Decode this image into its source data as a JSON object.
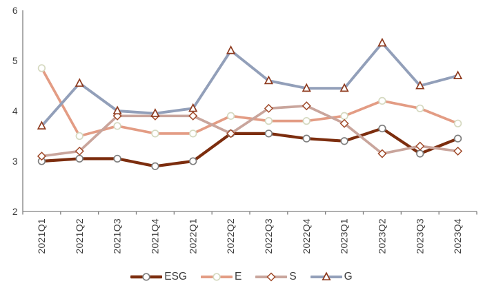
{
  "chart_data": {
    "type": "line",
    "categories": [
      "2021Q1",
      "2021Q2",
      "2021Q3",
      "2021Q4",
      "2022Q1",
      "2022Q2",
      "2022Q3",
      "2022Q4",
      "2023Q1",
      "2023Q2",
      "2023Q3",
      "2023Q4"
    ],
    "series": [
      {
        "name": "ESG",
        "marker": "circle",
        "color": "#7C2D0E",
        "marker_stroke": "#7f7f7f",
        "line_width": 4.2,
        "values": [
          3.0,
          3.05,
          3.05,
          2.9,
          3.0,
          3.55,
          3.55,
          3.45,
          3.4,
          3.65,
          3.15,
          3.45
        ]
      },
      {
        "name": "E",
        "marker": "circle",
        "color": "#E39C84",
        "marker_stroke": "#d5d9c0",
        "line_width": 3.7,
        "values": [
          4.85,
          3.5,
          3.7,
          3.55,
          3.55,
          3.9,
          3.8,
          3.8,
          3.9,
          4.2,
          4.05,
          3.75
        ]
      },
      {
        "name": "S",
        "marker": "diamond",
        "color": "#C9A59C",
        "marker_stroke": "#A04A2A",
        "line_width": 3.7,
        "values": [
          3.1,
          3.2,
          3.9,
          3.9,
          3.9,
          3.55,
          4.05,
          4.1,
          3.75,
          3.15,
          3.3,
          3.2
        ]
      },
      {
        "name": "G",
        "marker": "triangle",
        "color": "#929FB9",
        "marker_stroke": "#8E3A1E",
        "line_width": 3.9,
        "values": [
          3.7,
          4.55,
          4.0,
          3.95,
          4.05,
          5.2,
          4.6,
          4.45,
          4.45,
          5.35,
          4.5,
          4.7
        ]
      }
    ],
    "ylim": [
      2,
      6
    ],
    "yticks": [
      2,
      3,
      4,
      5,
      6
    ],
    "xlabel": "",
    "ylabel": "",
    "grid": false,
    "legend_position": "bottom",
    "axis_color": "#808080",
    "tick_label_color": "#3f3f3f",
    "marker_fill": "#ffffff"
  }
}
